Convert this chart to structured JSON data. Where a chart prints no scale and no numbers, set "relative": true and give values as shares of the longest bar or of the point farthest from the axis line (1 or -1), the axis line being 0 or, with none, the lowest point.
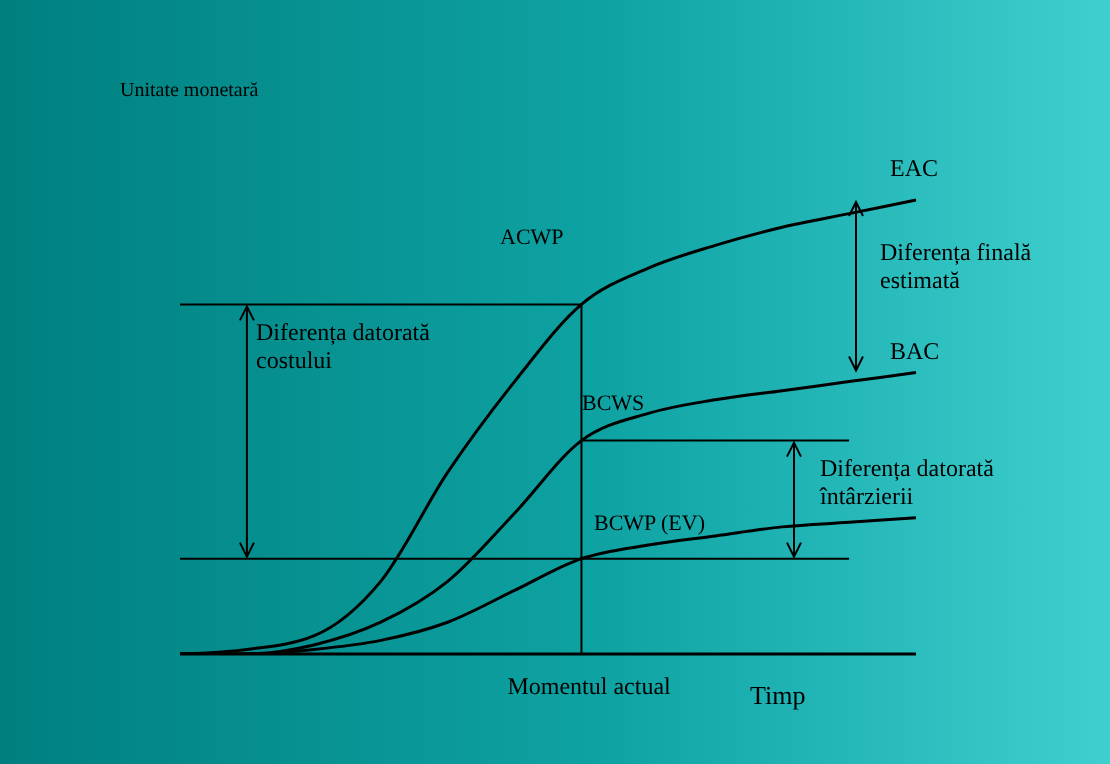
{
  "chart_data": {
    "type": "line",
    "relative": true,
    "xlabel": "Timp",
    "ylabel": "Unitate monetară",
    "categories": [
      null,
      null,
      null,
      null,
      null,
      null,
      null,
      null,
      null,
      null,
      null,
      null
    ],
    "series": [
      {
        "name": "ACWP",
        "color": "#000000",
        "values": [
          0,
          0.01,
          0.04,
          0.16,
          0.4,
          0.6,
          0.77,
          0.85,
          0.9,
          0.94,
          0.97,
          1
        ]
      },
      {
        "name": "BCWS",
        "color": "#000000",
        "values": [
          0,
          0,
          0.02,
          0.07,
          0.16,
          0.31,
          0.47,
          0.53,
          0.56,
          0.58,
          0.6,
          0.62
        ]
      },
      {
        "name": "BCWP (EV)",
        "color": "#000000",
        "values": [
          0,
          0,
          0.01,
          0.03,
          0.07,
          0.14,
          0.21,
          0.24,
          0.26,
          0.28,
          0.29,
          0.3
        ]
      }
    ],
    "ref_lines": [
      {
        "axis": "y",
        "value": 0.77,
        "color": "#000000"
      },
      {
        "axis": "y",
        "value": 0.47,
        "color": "#000000"
      },
      {
        "axis": "y",
        "value": 0.21,
        "color": "#000000"
      }
    ],
    "annotations": [
      "Momentul actual",
      "EAC",
      "BAC",
      "Diferența finală\nestimată",
      "Diferența datorată\ncostului",
      "Diferența datorată\nîntârzierii"
    ],
    "grid": false,
    "legend": false,
    "marker": "none",
    "line_style": "solid"
  }
}
